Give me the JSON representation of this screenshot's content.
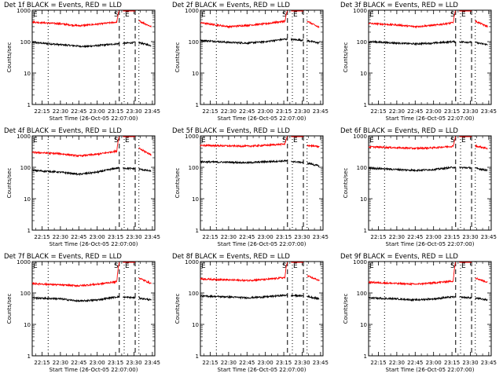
{
  "colors": {
    "events": "#000000",
    "lld": "#ff0000",
    "background": "#ffffff"
  },
  "chart_data": [
    {
      "type": "line",
      "title": "Det 1f BLACK = Events, RED = LLD",
      "xlabel": "Start Time (26-Oct-05 22:07:00)",
      "ylabel": "Counts/sec",
      "yscale": "log",
      "ylim": [
        1,
        1000
      ],
      "yticks": [
        1,
        10,
        100,
        1000
      ],
      "ytick_labels": [
        "1",
        "10",
        "100",
        "1000"
      ],
      "xlim": [
        "22:07",
        "23:47"
      ],
      "xticks": [
        "22:15",
        "22:30",
        "22:45",
        "23:00",
        "23:15",
        "23:30",
        "23:45"
      ],
      "corner_labels": [
        "E",
        "S",
        "E"
      ],
      "vlines": [
        {
          "x": "22:20",
          "style": "dotted"
        },
        {
          "x": "23:18",
          "style": "dashed"
        },
        {
          "x": "23:22",
          "style": "dotted"
        },
        {
          "x": "23:31",
          "style": "dashed"
        },
        {
          "x": "23:34",
          "style": "dotted"
        }
      ],
      "series": [
        {
          "name": "Events",
          "color": "#000000",
          "x": [
            "22:07",
            "22:30",
            "22:50",
            "23:00",
            "23:16",
            "23:33",
            "23:44"
          ],
          "values": [
            95,
            80,
            70,
            75,
            85,
            95,
            75
          ]
        },
        {
          "name": "LLD",
          "color": "#ff0000",
          "x": [
            "22:07",
            "22:30",
            "22:45",
            "23:00",
            "23:16",
            "23:17",
            "23:18",
            "23:33",
            "23:34",
            "23:44"
          ],
          "values": [
            420,
            370,
            320,
            360,
            420,
            700,
            1000,
            1000,
            460,
            300
          ]
        }
      ]
    },
    {
      "type": "line",
      "title": "Det 2f BLACK = Events, RED = LLD",
      "xlabel": "Start Time (26-Oct-05 22:07:00)",
      "ylabel": "Counts/sec",
      "yscale": "log",
      "ylim": [
        1,
        1000
      ],
      "yticks": [
        1,
        10,
        100,
        1000
      ],
      "ytick_labels": [
        "1",
        "10",
        "100",
        "1000"
      ],
      "xlim": [
        "22:07",
        "23:47"
      ],
      "xticks": [
        "22:15",
        "22:30",
        "22:45",
        "23:00",
        "23:15",
        "23:30",
        "23:45"
      ],
      "corner_labels": [
        "E",
        "S",
        "E"
      ],
      "vlines": [
        {
          "x": "22:20",
          "style": "dotted"
        },
        {
          "x": "23:18",
          "style": "dashed"
        },
        {
          "x": "23:22",
          "style": "dotted"
        },
        {
          "x": "23:31",
          "style": "dashed"
        },
        {
          "x": "23:34",
          "style": "dotted"
        }
      ],
      "series": [
        {
          "name": "Events",
          "color": "#000000",
          "x": [
            "22:07",
            "22:30",
            "22:45",
            "23:00",
            "23:16",
            "23:33",
            "23:44"
          ],
          "values": [
            110,
            95,
            90,
            100,
            120,
            110,
            90
          ]
        },
        {
          "name": "LLD",
          "color": "#ff0000",
          "x": [
            "22:07",
            "22:30",
            "22:45",
            "23:00",
            "23:16",
            "23:17",
            "23:18",
            "23:33",
            "23:34",
            "23:44"
          ],
          "values": [
            400,
            300,
            330,
            370,
            450,
            700,
            1000,
            1000,
            450,
            280
          ]
        }
      ]
    },
    {
      "type": "line",
      "title": "Det 3f BLACK = Events, RED = LLD",
      "xlabel": "Start Time (26-Oct-05 22:07:00)",
      "ylabel": "Counts/sec",
      "yscale": "log",
      "ylim": [
        1,
        1000
      ],
      "yticks": [
        1,
        10,
        100,
        1000
      ],
      "ytick_labels": [
        "1",
        "10",
        "100",
        "1000"
      ],
      "xlim": [
        "22:07",
        "23:47"
      ],
      "xticks": [
        "22:15",
        "22:30",
        "22:45",
        "23:00",
        "23:15",
        "23:30",
        "23:45"
      ],
      "corner_labels": [
        "E",
        "S",
        "E"
      ],
      "vlines": [
        {
          "x": "22:20",
          "style": "dotted"
        },
        {
          "x": "23:18",
          "style": "dashed"
        },
        {
          "x": "23:22",
          "style": "dotted"
        },
        {
          "x": "23:31",
          "style": "dashed"
        },
        {
          "x": "23:34",
          "style": "dotted"
        }
      ],
      "series": [
        {
          "name": "Events",
          "color": "#000000",
          "x": [
            "22:07",
            "22:30",
            "22:45",
            "23:00",
            "23:16",
            "23:33",
            "23:44"
          ],
          "values": [
            100,
            90,
            85,
            90,
            100,
            95,
            80
          ]
        },
        {
          "name": "LLD",
          "color": "#ff0000",
          "x": [
            "22:07",
            "22:30",
            "22:45",
            "23:00",
            "23:16",
            "23:17",
            "23:18",
            "23:33",
            "23:34",
            "23:44"
          ],
          "values": [
            380,
            340,
            300,
            330,
            400,
            700,
            1000,
            1000,
            450,
            300
          ]
        }
      ]
    },
    {
      "type": "line",
      "title": "Det 4f BLACK = Events, RED = LLD",
      "xlabel": "Start Time (26-Oct-05 22:07:00)",
      "ylabel": "Counts/sec",
      "yscale": "log",
      "ylim": [
        1,
        1000
      ],
      "yticks": [
        1,
        10,
        100,
        1000
      ],
      "ytick_labels": [
        "1",
        "10",
        "100",
        "1000"
      ],
      "xlim": [
        "22:07",
        "23:47"
      ],
      "xticks": [
        "22:15",
        "22:30",
        "22:45",
        "23:00",
        "23:15",
        "23:30",
        "23:45"
      ],
      "corner_labels": [
        "E",
        "S",
        "E"
      ],
      "vlines": [
        {
          "x": "22:20",
          "style": "dotted"
        },
        {
          "x": "23:18",
          "style": "dashed"
        },
        {
          "x": "23:22",
          "style": "dotted"
        },
        {
          "x": "23:31",
          "style": "dashed"
        },
        {
          "x": "23:34",
          "style": "dotted"
        }
      ],
      "series": [
        {
          "name": "Events",
          "color": "#000000",
          "x": [
            "22:07",
            "22:30",
            "22:45",
            "23:00",
            "23:16",
            "23:33",
            "23:44"
          ],
          "values": [
            80,
            70,
            60,
            70,
            95,
            90,
            75
          ]
        },
        {
          "name": "LLD",
          "color": "#ff0000",
          "x": [
            "22:07",
            "22:30",
            "22:45",
            "23:00",
            "23:16",
            "23:17",
            "23:18",
            "23:33",
            "23:34",
            "23:44"
          ],
          "values": [
            300,
            270,
            230,
            260,
            330,
            700,
            1000,
            1000,
            400,
            250
          ]
        }
      ]
    },
    {
      "type": "line",
      "title": "Det 5f BLACK = Events, RED = LLD",
      "xlabel": "Start Time (26-Oct-05 22:07:00)",
      "ylabel": "Counts/sec",
      "yscale": "log",
      "ylim": [
        1,
        1000
      ],
      "yticks": [
        1,
        10,
        100,
        1000
      ],
      "ytick_labels": [
        "1",
        "10",
        "100",
        "1000"
      ],
      "xlim": [
        "22:07",
        "23:47"
      ],
      "xticks": [
        "22:15",
        "22:30",
        "22:45",
        "23:00",
        "23:15",
        "23:30",
        "23:45"
      ],
      "corner_labels": [
        "E",
        "S",
        "E"
      ],
      "vlines": [
        {
          "x": "22:20",
          "style": "dotted"
        },
        {
          "x": "23:18",
          "style": "dashed"
        },
        {
          "x": "23:22",
          "style": "dotted"
        },
        {
          "x": "23:31",
          "style": "dashed"
        },
        {
          "x": "23:34",
          "style": "dotted"
        }
      ],
      "series": [
        {
          "name": "Events",
          "color": "#000000",
          "x": [
            "22:07",
            "22:30",
            "22:45",
            "23:00",
            "23:16",
            "23:33",
            "23:44"
          ],
          "values": [
            150,
            145,
            140,
            150,
            160,
            140,
            110
          ]
        },
        {
          "name": "LLD",
          "color": "#ff0000",
          "x": [
            "22:07",
            "22:30",
            "22:45",
            "23:00",
            "23:16",
            "23:17",
            "23:18",
            "23:33",
            "23:34",
            "23:44"
          ],
          "values": [
            500,
            480,
            470,
            500,
            550,
            800,
            1000,
            1000,
            500,
            450
          ]
        }
      ]
    },
    {
      "type": "line",
      "title": "Det 6f BLACK = Events, RED = LLD",
      "xlabel": "Start Time (26-Oct-05 22:07:00)",
      "ylabel": "Counts/sec",
      "yscale": "log",
      "ylim": [
        1,
        1000
      ],
      "yticks": [
        1,
        10,
        100,
        1000
      ],
      "ytick_labels": [
        "1",
        "10",
        "100",
        "1000"
      ],
      "xlim": [
        "22:07",
        "23:47"
      ],
      "xticks": [
        "22:15",
        "22:30",
        "22:45",
        "23:00",
        "23:15",
        "23:30",
        "23:45"
      ],
      "corner_labels": [
        "E",
        "S",
        "E"
      ],
      "vlines": [
        {
          "x": "22:20",
          "style": "dotted"
        },
        {
          "x": "23:18",
          "style": "dashed"
        },
        {
          "x": "23:22",
          "style": "dotted"
        },
        {
          "x": "23:31",
          "style": "dashed"
        },
        {
          "x": "23:34",
          "style": "dotted"
        }
      ],
      "series": [
        {
          "name": "Events",
          "color": "#000000",
          "x": [
            "22:07",
            "22:30",
            "22:45",
            "23:00",
            "23:16",
            "23:33",
            "23:44"
          ],
          "values": [
            95,
            85,
            80,
            85,
            100,
            95,
            80
          ]
        },
        {
          "name": "LLD",
          "color": "#ff0000",
          "x": [
            "22:07",
            "22:30",
            "22:45",
            "23:00",
            "23:16",
            "23:17",
            "23:18",
            "23:33",
            "23:34",
            "23:44"
          ],
          "values": [
            450,
            420,
            400,
            420,
            470,
            700,
            1000,
            1000,
            480,
            400
          ]
        }
      ]
    },
    {
      "type": "line",
      "title": "Det 7f BLACK = Events, RED = LLD",
      "xlabel": "Start Time (26-Oct-05 22:07:00)",
      "ylabel": "Counts/sec",
      "yscale": "log",
      "ylim": [
        1,
        1000
      ],
      "yticks": [
        1,
        10,
        100,
        1000
      ],
      "ytick_labels": [
        "1",
        "10",
        "100",
        "1000"
      ],
      "xlim": [
        "22:07",
        "23:47"
      ],
      "xticks": [
        "22:15",
        "22:30",
        "22:45",
        "23:00",
        "23:15",
        "23:30",
        "23:45"
      ],
      "corner_labels": [
        "E",
        "S",
        "E"
      ],
      "vlines": [
        {
          "x": "22:20",
          "style": "dotted"
        },
        {
          "x": "23:18",
          "style": "dashed"
        },
        {
          "x": "23:22",
          "style": "dotted"
        },
        {
          "x": "23:31",
          "style": "dashed"
        },
        {
          "x": "23:34",
          "style": "dotted"
        }
      ],
      "series": [
        {
          "name": "Events",
          "color": "#000000",
          "x": [
            "22:07",
            "22:30",
            "22:45",
            "23:00",
            "23:16",
            "23:33",
            "23:44"
          ],
          "values": [
            70,
            65,
            55,
            60,
            75,
            70,
            60
          ]
        },
        {
          "name": "LLD",
          "color": "#ff0000",
          "x": [
            "22:07",
            "22:30",
            "22:45",
            "23:00",
            "23:16",
            "23:17",
            "23:18",
            "23:33",
            "23:34",
            "23:44"
          ],
          "values": [
            200,
            180,
            170,
            190,
            230,
            600,
            1000,
            1000,
            300,
            200
          ]
        }
      ]
    },
    {
      "type": "line",
      "title": "Det 8f BLACK = Events, RED = LLD",
      "xlabel": "Start Time (26-Oct-05 22:07:00)",
      "ylabel": "Counts/sec",
      "yscale": "log",
      "ylim": [
        1,
        1000
      ],
      "yticks": [
        1,
        10,
        100,
        1000
      ],
      "ytick_labels": [
        "1",
        "10",
        "100",
        "1000"
      ],
      "xlim": [
        "22:07",
        "23:47"
      ],
      "xticks": [
        "22:15",
        "22:30",
        "22:45",
        "23:00",
        "23:15",
        "23:30",
        "23:45"
      ],
      "corner_labels": [
        "E",
        "S",
        "E"
      ],
      "vlines": [
        {
          "x": "22:20",
          "style": "dotted"
        },
        {
          "x": "23:18",
          "style": "dashed"
        },
        {
          "x": "23:22",
          "style": "dotted"
        },
        {
          "x": "23:31",
          "style": "dashed"
        },
        {
          "x": "23:34",
          "style": "dotted"
        }
      ],
      "series": [
        {
          "name": "Events",
          "color": "#000000",
          "x": [
            "22:07",
            "22:30",
            "22:45",
            "23:00",
            "23:16",
            "23:33",
            "23:44"
          ],
          "values": [
            80,
            75,
            70,
            75,
            85,
            80,
            65
          ]
        },
        {
          "name": "LLD",
          "color": "#ff0000",
          "x": [
            "22:07",
            "22:30",
            "22:45",
            "23:00",
            "23:16",
            "23:17",
            "23:18",
            "23:33",
            "23:34",
            "23:44"
          ],
          "values": [
            280,
            260,
            250,
            270,
            310,
            700,
            1000,
            1000,
            350,
            250
          ]
        }
      ]
    },
    {
      "type": "line",
      "title": "Det 9f BLACK = Events, RED = LLD",
      "xlabel": "Start Time (26-Oct-05 22:07:00)",
      "ylabel": "Counts/sec",
      "yscale": "log",
      "ylim": [
        1,
        1000
      ],
      "yticks": [
        1,
        10,
        100,
        1000
      ],
      "ytick_labels": [
        "1",
        "10",
        "100",
        "1000"
      ],
      "xlim": [
        "22:07",
        "23:47"
      ],
      "xticks": [
        "22:15",
        "22:30",
        "22:45",
        "23:00",
        "23:15",
        "23:30",
        "23:45"
      ],
      "corner_labels": [
        "E",
        "S",
        "E"
      ],
      "vlines": [
        {
          "x": "22:20",
          "style": "dotted"
        },
        {
          "x": "23:18",
          "style": "dashed"
        },
        {
          "x": "23:22",
          "style": "dotted"
        },
        {
          "x": "23:31",
          "style": "dashed"
        },
        {
          "x": "23:34",
          "style": "dotted"
        }
      ],
      "series": [
        {
          "name": "Events",
          "color": "#000000",
          "x": [
            "22:07",
            "22:30",
            "22:45",
            "23:00",
            "23:16",
            "23:33",
            "23:44"
          ],
          "values": [
            70,
            65,
            60,
            65,
            75,
            70,
            60
          ]
        },
        {
          "name": "LLD",
          "color": "#ff0000",
          "x": [
            "22:07",
            "22:30",
            "22:45",
            "23:00",
            "23:16",
            "23:17",
            "23:18",
            "23:33",
            "23:34",
            "23:44"
          ],
          "values": [
            220,
            200,
            190,
            210,
            240,
            600,
            1000,
            1000,
            300,
            220
          ]
        }
      ]
    }
  ]
}
